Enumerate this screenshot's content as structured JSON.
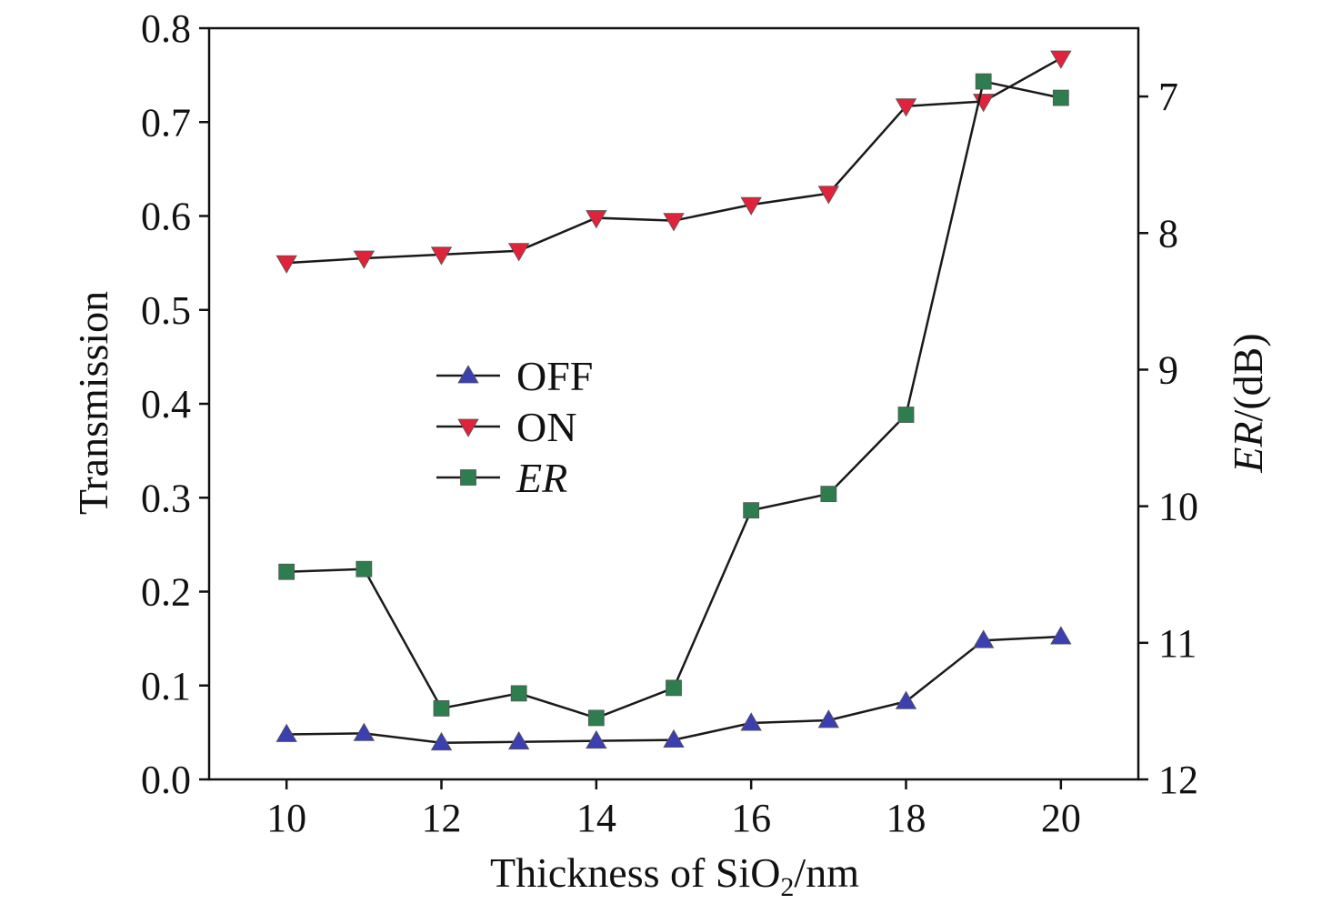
{
  "chart_data": {
    "type": "line",
    "x": [
      10,
      11,
      12,
      13,
      14,
      15,
      16,
      17,
      18,
      19,
      20
    ],
    "x_ticks": [
      "10",
      "12",
      "14",
      "16",
      "18",
      "20"
    ],
    "x_tick_values": [
      10,
      12,
      14,
      16,
      18,
      20
    ],
    "xlim": [
      9,
      21
    ],
    "ylim_left": [
      0.0,
      0.8
    ],
    "y_left_ticks": [
      "0.0",
      "0.1",
      "0.2",
      "0.3",
      "0.4",
      "0.5",
      "0.6",
      "0.7",
      "0.8"
    ],
    "y_left_tick_values": [
      0.0,
      0.1,
      0.2,
      0.3,
      0.4,
      0.5,
      0.6,
      0.7,
      0.8
    ],
    "ylim_right": [
      12,
      6.5
    ],
    "y_right_ticks": [
      "7",
      "8",
      "9",
      "10",
      "11",
      "12"
    ],
    "y_right_tick_values": [
      7,
      8,
      9,
      10,
      11,
      12
    ],
    "xlabel_parts": {
      "main": "Thickness of SiO",
      "sub": "2",
      "tail": "/nm"
    },
    "ylabel_left": "Transmission",
    "ylabel_right_parts": {
      "italic": "ER",
      "tail": "/(dB)"
    },
    "legend_position": "center-left",
    "grid": false,
    "series": [
      {
        "name": "OFF",
        "axis": "left",
        "marker": "triangle-up",
        "color": "#3b3fb0",
        "values": [
          0.048,
          0.049,
          0.039,
          0.04,
          0.041,
          0.042,
          0.06,
          0.063,
          0.083,
          0.148,
          0.152
        ]
      },
      {
        "name": "ON",
        "axis": "left",
        "marker": "triangle-down",
        "color": "#e0233a",
        "values": [
          0.55,
          0.555,
          0.559,
          0.563,
          0.598,
          0.595,
          0.612,
          0.624,
          0.717,
          0.722,
          0.768
        ]
      },
      {
        "name": "ER",
        "name_italic": true,
        "axis": "right",
        "marker": "square",
        "color": "#2e7d4f",
        "values": [
          10.48,
          10.46,
          11.48,
          11.37,
          11.55,
          11.33,
          10.03,
          9.91,
          9.33,
          6.89,
          7.01
        ]
      }
    ]
  }
}
